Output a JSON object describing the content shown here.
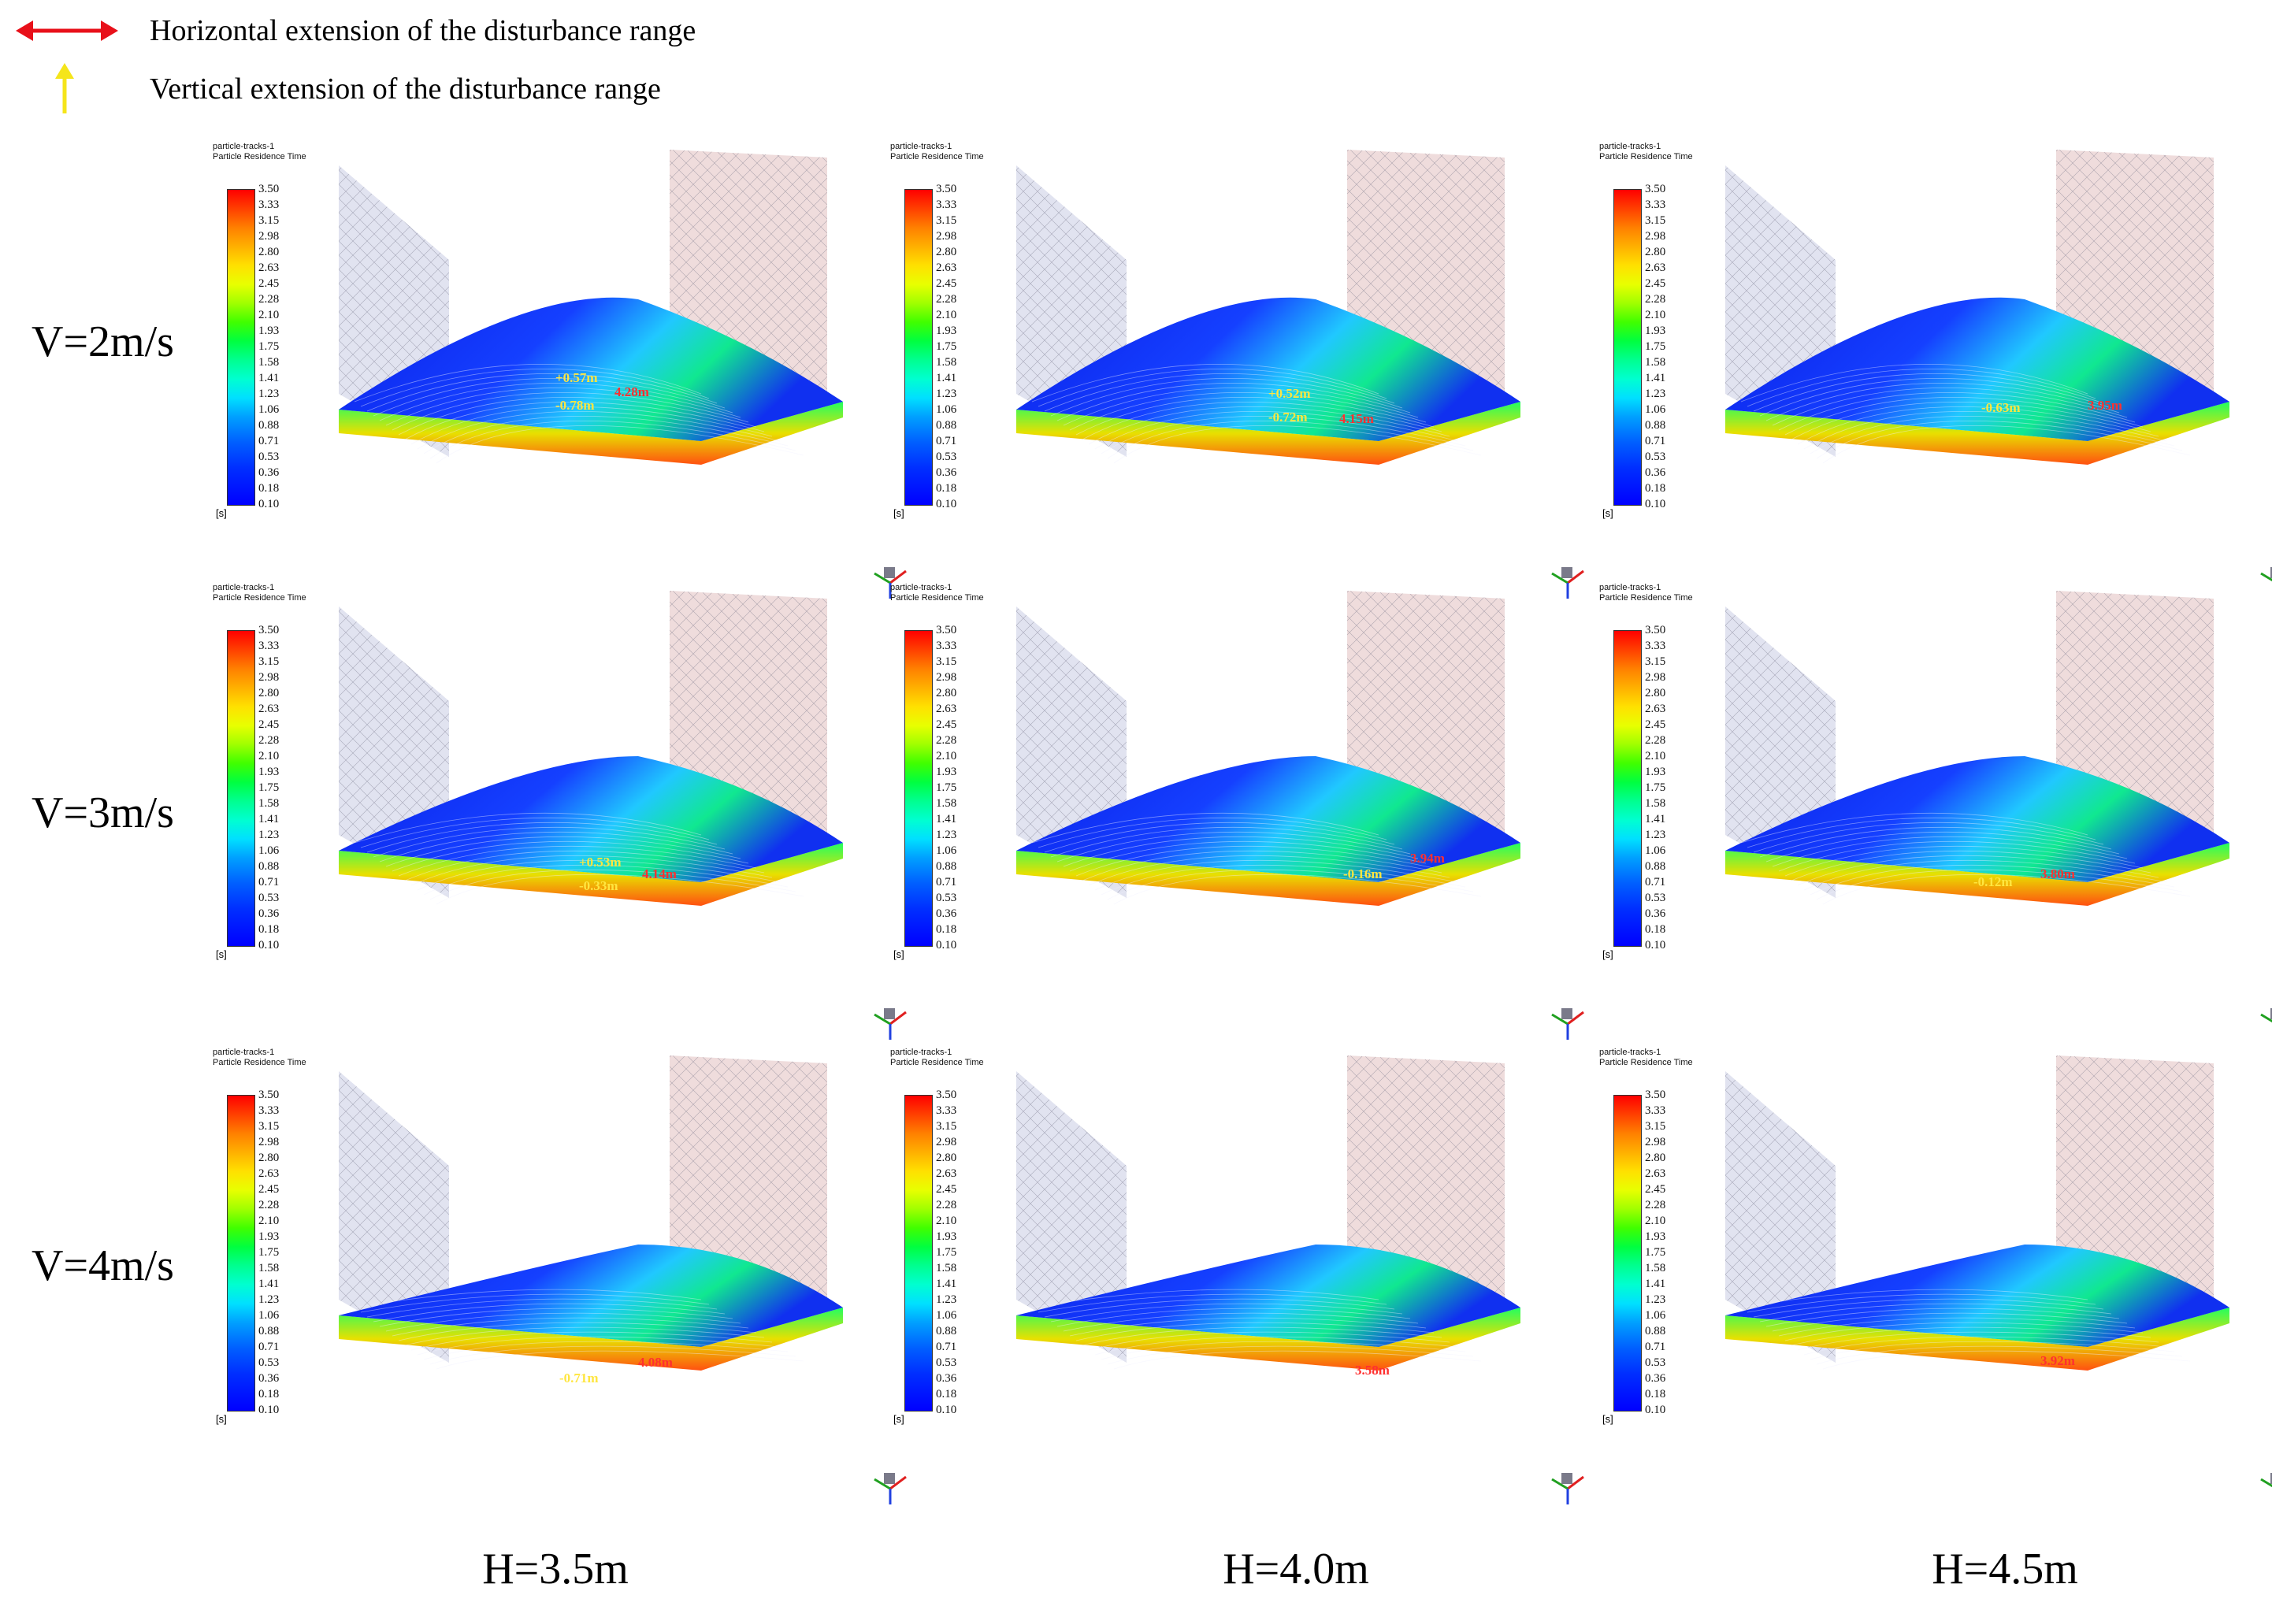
{
  "legend": {
    "horizontal_label": "Horizontal extension of the disturbance range",
    "vertical_label": "Vertical extension of the disturbance range",
    "horizontal_color": "#e8101a",
    "vertical_color": "#f5e51a"
  },
  "row_labels": [
    "V=2m/s",
    "V=3m/s",
    "V=4m/s"
  ],
  "col_labels": [
    "H=3.5m",
    "H=4.0m",
    "H=4.5m"
  ],
  "colorbar": {
    "title_line1": "particle-tracks-1",
    "title_line2": "Particle Residence Time",
    "ticks": [
      "3.50",
      "3.33",
      "3.15",
      "2.98",
      "2.80",
      "2.63",
      "2.45",
      "2.28",
      "2.10",
      "1.93",
      "1.75",
      "1.58",
      "1.41",
      "1.23",
      "1.06",
      "0.88",
      "0.71",
      "0.53",
      "0.36",
      "0.18",
      "0.10"
    ],
    "unit": "[s]"
  },
  "panels": [
    {
      "row": 0,
      "col": 0,
      "annotations": [
        {
          "text": "+0.57m",
          "color": "y"
        },
        {
          "text": "-0.78m",
          "color": "y"
        },
        {
          "text": "4.28m",
          "color": "r"
        }
      ]
    },
    {
      "row": 0,
      "col": 1,
      "annotations": [
        {
          "text": "+0.52m",
          "color": "y"
        },
        {
          "text": "-0.72m",
          "color": "y"
        },
        {
          "text": "4.15m",
          "color": "r"
        }
      ]
    },
    {
      "row": 0,
      "col": 2,
      "annotations": [
        {
          "text": "-0.63m",
          "color": "y"
        },
        {
          "text": "3.95m",
          "color": "r"
        }
      ]
    },
    {
      "row": 1,
      "col": 0,
      "annotations": [
        {
          "text": "+0.53m",
          "color": "y"
        },
        {
          "text": "-0.33m",
          "color": "y"
        },
        {
          "text": "4.14m",
          "color": "r"
        }
      ]
    },
    {
      "row": 1,
      "col": 1,
      "annotations": [
        {
          "text": "-0.16m",
          "color": "y"
        },
        {
          "text": "3.94m",
          "color": "r"
        }
      ]
    },
    {
      "row": 1,
      "col": 2,
      "annotations": [
        {
          "text": "-0.12m",
          "color": "y"
        },
        {
          "text": "3.80m",
          "color": "r"
        }
      ]
    },
    {
      "row": 2,
      "col": 0,
      "annotations": [
        {
          "text": "-0.71m",
          "color": "y"
        },
        {
          "text": "4.08m",
          "color": "r"
        }
      ]
    },
    {
      "row": 2,
      "col": 1,
      "annotations": [
        {
          "text": "3.58m",
          "color": "r"
        }
      ]
    },
    {
      "row": 2,
      "col": 2,
      "annotations": [
        {
          "text": "3.92m",
          "color": "r"
        }
      ]
    }
  ]
}
